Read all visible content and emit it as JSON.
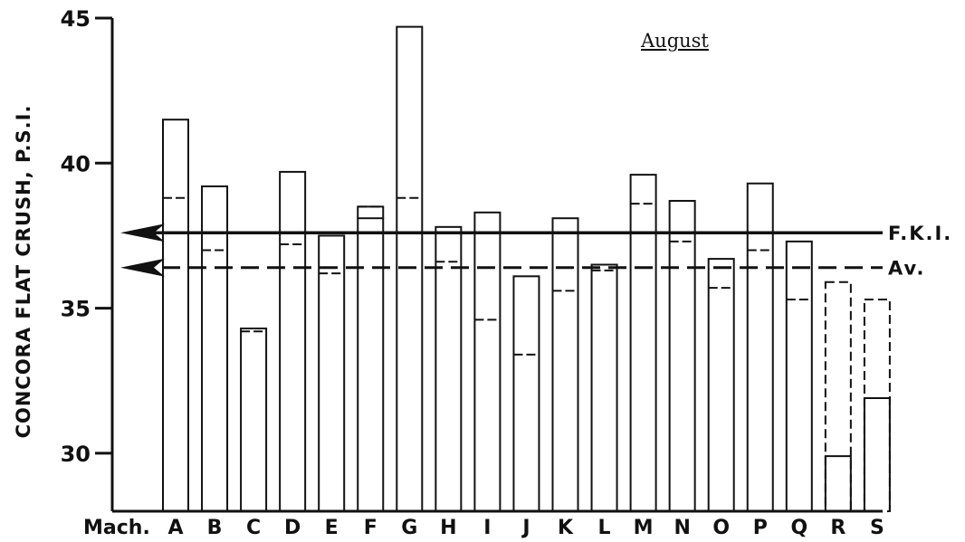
{
  "chart_data": {
    "type": "bar",
    "title": "August",
    "ylabel": "CONCORA  FLAT  CRUSH,  P.S.I.",
    "x_axis_label": "Mach.",
    "ylim": [
      28,
      45
    ],
    "yticks": [
      30,
      35,
      40,
      45
    ],
    "categories": [
      "A",
      "B",
      "C",
      "D",
      "E",
      "F",
      "G",
      "H",
      "I",
      "J",
      "K",
      "L",
      "M",
      "N",
      "O",
      "P",
      "Q",
      "R",
      "S"
    ],
    "series": [
      {
        "style": "solid",
        "values": [
          41.5,
          39.2,
          34.3,
          39.7,
          37.5,
          38.1,
          44.7,
          37.8,
          38.3,
          36.1,
          38.1,
          36.5,
          39.6,
          38.7,
          36.7,
          39.3,
          37.3,
          29.9,
          31.9
        ]
      },
      {
        "style": "dashed",
        "values": [
          38.8,
          37.0,
          34.2,
          37.2,
          36.2,
          38.5,
          38.8,
          36.6,
          34.6,
          33.4,
          35.6,
          36.3,
          38.6,
          37.3,
          35.7,
          37.0,
          35.3,
          35.9,
          35.3
        ]
      }
    ],
    "dashed_outline_categories": [
      "R",
      "S"
    ],
    "reference_lines": [
      {
        "label": "F.K.I.",
        "value": 37.6,
        "style": "solid"
      },
      {
        "label": "Av.",
        "value": 36.4,
        "style": "dashed"
      }
    ]
  }
}
